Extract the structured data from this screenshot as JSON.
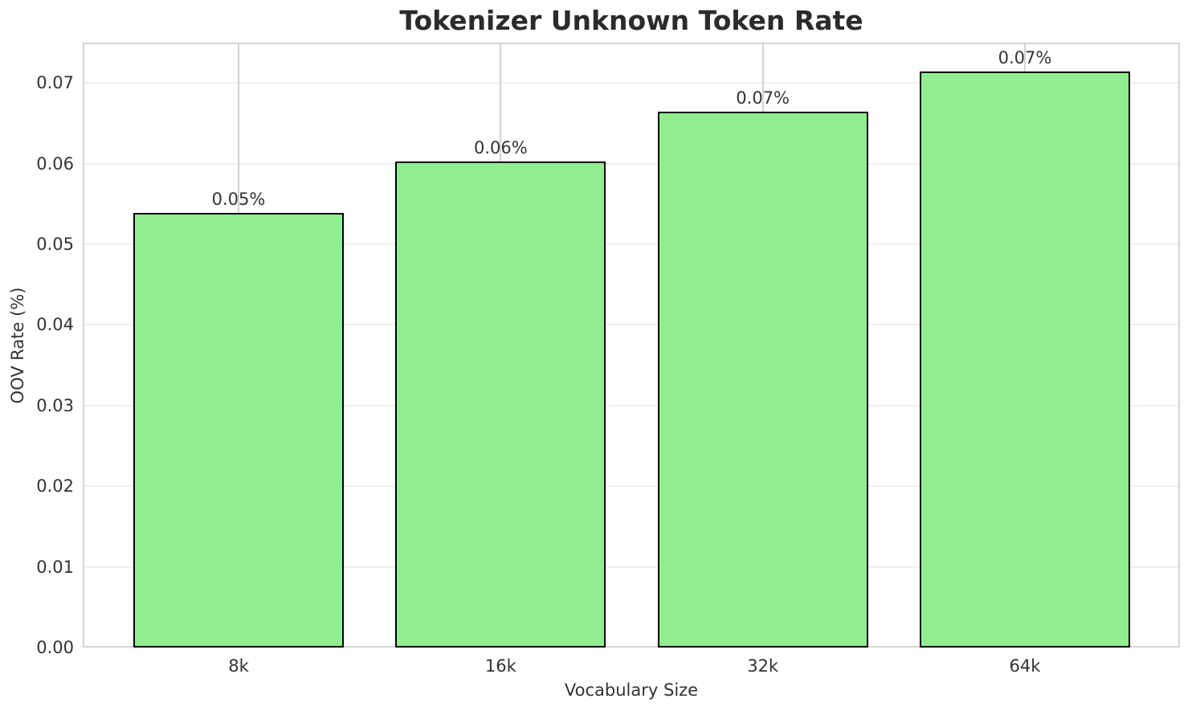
{
  "chart_data": {
    "type": "bar",
    "title": "Tokenizer Unknown Token Rate",
    "xlabel": "Vocabulary Size",
    "ylabel": "OOV Rate (%)",
    "categories": [
      "8k",
      "16k",
      "32k",
      "64k"
    ],
    "values": [
      0.0539,
      0.0603,
      0.0664,
      0.0714
    ],
    "bar_labels": [
      "0.05%",
      "0.06%",
      "0.07%",
      "0.07%"
    ],
    "ytick_labels": [
      "0.00",
      "0.01",
      "0.02",
      "0.03",
      "0.04",
      "0.05",
      "0.06",
      "0.07"
    ],
    "ylim": [
      0,
      0.075
    ],
    "grid": true,
    "legend": false,
    "bar_color": "#90EE90",
    "bar_edge_color": "#000000"
  }
}
